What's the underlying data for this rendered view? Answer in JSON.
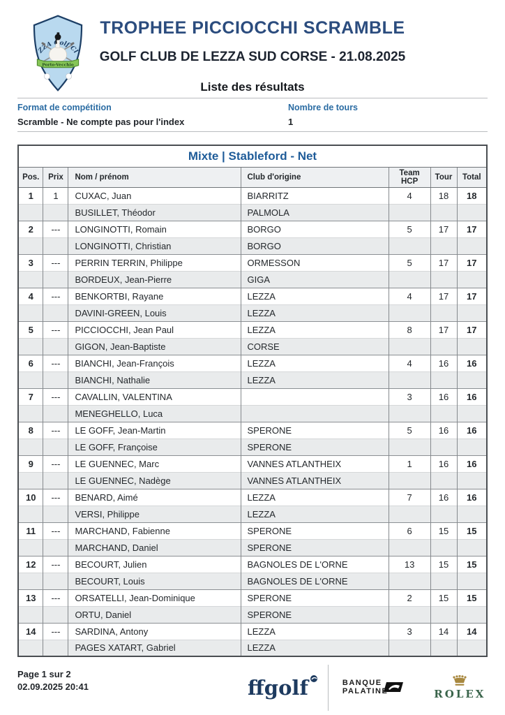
{
  "header": {
    "title": "TROPHEE PICCIOCCHI SCRAMBLE",
    "subtitle": "GOLF CLUB DE LEZZA SUD CORSE - 21.08.2025",
    "list_label": "Liste des résultats",
    "logo": {
      "club_arc_text": "LEZZA Golf Club",
      "banner_text": "Porto-Vecchio"
    }
  },
  "info": {
    "format_label": "Format de compétition",
    "format_value": "Scramble - Ne compte pas pour l'index",
    "rounds_label": "Nombre de tours",
    "rounds_value": "1"
  },
  "table": {
    "section_title": "Mixte | Stableford - Net",
    "columns": [
      "Pos.",
      "Prix",
      "Nom / prénom",
      "Club d'origine",
      "Team HCP",
      "Tour",
      "Total"
    ],
    "rows": [
      {
        "pos": "1",
        "prix": "1",
        "players": [
          {
            "name": "CUXAC, Juan",
            "club": "BIARRITZ"
          },
          {
            "name": "BUSILLET, Théodor",
            "club": "PALMOLA"
          }
        ],
        "team_hcp": "4",
        "tour": "18",
        "total": "18"
      },
      {
        "pos": "2",
        "prix": "---",
        "players": [
          {
            "name": "LONGINOTTI, Romain",
            "club": "BORGO"
          },
          {
            "name": "LONGINOTTI, Christian",
            "club": "BORGO"
          }
        ],
        "team_hcp": "5",
        "tour": "17",
        "total": "17"
      },
      {
        "pos": "3",
        "prix": "---",
        "players": [
          {
            "name": "PERRIN TERRIN, Philippe",
            "club": "ORMESSON"
          },
          {
            "name": "BORDEUX, Jean-Pierre",
            "club": "GIGA"
          }
        ],
        "team_hcp": "5",
        "tour": "17",
        "total": "17"
      },
      {
        "pos": "4",
        "prix": "---",
        "players": [
          {
            "name": "BENKORTBI, Rayane",
            "club": "LEZZA"
          },
          {
            "name": "DAVINI-GREEN, Louis",
            "club": "LEZZA"
          }
        ],
        "team_hcp": "4",
        "tour": "17",
        "total": "17"
      },
      {
        "pos": "5",
        "prix": "---",
        "players": [
          {
            "name": "PICCIOCCHI, Jean Paul",
            "club": "LEZZA"
          },
          {
            "name": "GIGON, Jean-Baptiste",
            "club": "CORSE"
          }
        ],
        "team_hcp": "8",
        "tour": "17",
        "total": "17"
      },
      {
        "pos": "6",
        "prix": "---",
        "players": [
          {
            "name": "BIANCHI, Jean-François",
            "club": "LEZZA"
          },
          {
            "name": "BIANCHI, Nathalie",
            "club": "LEZZA"
          }
        ],
        "team_hcp": "4",
        "tour": "16",
        "total": "16"
      },
      {
        "pos": "7",
        "prix": "---",
        "players": [
          {
            "name": "CAVALLIN, VALENTINA",
            "club": ""
          },
          {
            "name": "MENEGHELLO, Luca",
            "club": ""
          }
        ],
        "team_hcp": "3",
        "tour": "16",
        "total": "16"
      },
      {
        "pos": "8",
        "prix": "---",
        "players": [
          {
            "name": "LE GOFF, Jean-Martin",
            "club": "SPERONE"
          },
          {
            "name": "LE GOFF, Françoise",
            "club": "SPERONE"
          }
        ],
        "team_hcp": "5",
        "tour": "16",
        "total": "16"
      },
      {
        "pos": "9",
        "prix": "---",
        "players": [
          {
            "name": "LE GUENNEC, Marc",
            "club": "VANNES ATLANTHEIX"
          },
          {
            "name": "LE GUENNEC, Nadège",
            "club": "VANNES ATLANTHEIX"
          }
        ],
        "team_hcp": "1",
        "tour": "16",
        "total": "16"
      },
      {
        "pos": "10",
        "prix": "---",
        "players": [
          {
            "name": "BENARD, Aimé",
            "club": "LEZZA"
          },
          {
            "name": "VERSI, Philippe",
            "club": "LEZZA"
          }
        ],
        "team_hcp": "7",
        "tour": "16",
        "total": "16"
      },
      {
        "pos": "11",
        "prix": "---",
        "players": [
          {
            "name": "MARCHAND, Fabienne",
            "club": "SPERONE"
          },
          {
            "name": "MARCHAND, Daniel",
            "club": "SPERONE"
          }
        ],
        "team_hcp": "6",
        "tour": "15",
        "total": "15"
      },
      {
        "pos": "12",
        "prix": "---",
        "players": [
          {
            "name": "BECOURT, Julien",
            "club": "BAGNOLES DE L'ORNE"
          },
          {
            "name": "BECOURT, Louis",
            "club": "BAGNOLES DE L'ORNE"
          }
        ],
        "team_hcp": "13",
        "tour": "15",
        "total": "15"
      },
      {
        "pos": "13",
        "prix": "---",
        "players": [
          {
            "name": "ORSATELLI, Jean-Dominique",
            "club": "SPERONE"
          },
          {
            "name": "ORTU, Daniel",
            "club": "SPERONE"
          }
        ],
        "team_hcp": "2",
        "tour": "15",
        "total": "15"
      },
      {
        "pos": "14",
        "prix": "---",
        "players": [
          {
            "name": "SARDINA, Antony",
            "club": "LEZZA"
          },
          {
            "name": "PAGES XATART, Gabriel",
            "club": "LEZZA"
          }
        ],
        "team_hcp": "3",
        "tour": "14",
        "total": "14"
      }
    ]
  },
  "footer": {
    "page_number": "Page 1 sur 2",
    "timestamp": "02.09.2025 20:41",
    "ffgolf_label": "ffgolf",
    "banque_line1": "BANQUE",
    "banque_line2": "PALATINE",
    "rolex_label": "ROLEX"
  },
  "colors": {
    "title_navy": "#2b4c7e",
    "label_blue": "#2b6ca3",
    "section_blue": "#1f5c99",
    "shield_fill": "#b9d9ef",
    "shield_border": "#1d3f66",
    "ribbon_green": "#86c556",
    "rolex_green": "#3a644b",
    "crown_gold": "#a8883f",
    "alt_row_gray": "#e9ebec"
  }
}
